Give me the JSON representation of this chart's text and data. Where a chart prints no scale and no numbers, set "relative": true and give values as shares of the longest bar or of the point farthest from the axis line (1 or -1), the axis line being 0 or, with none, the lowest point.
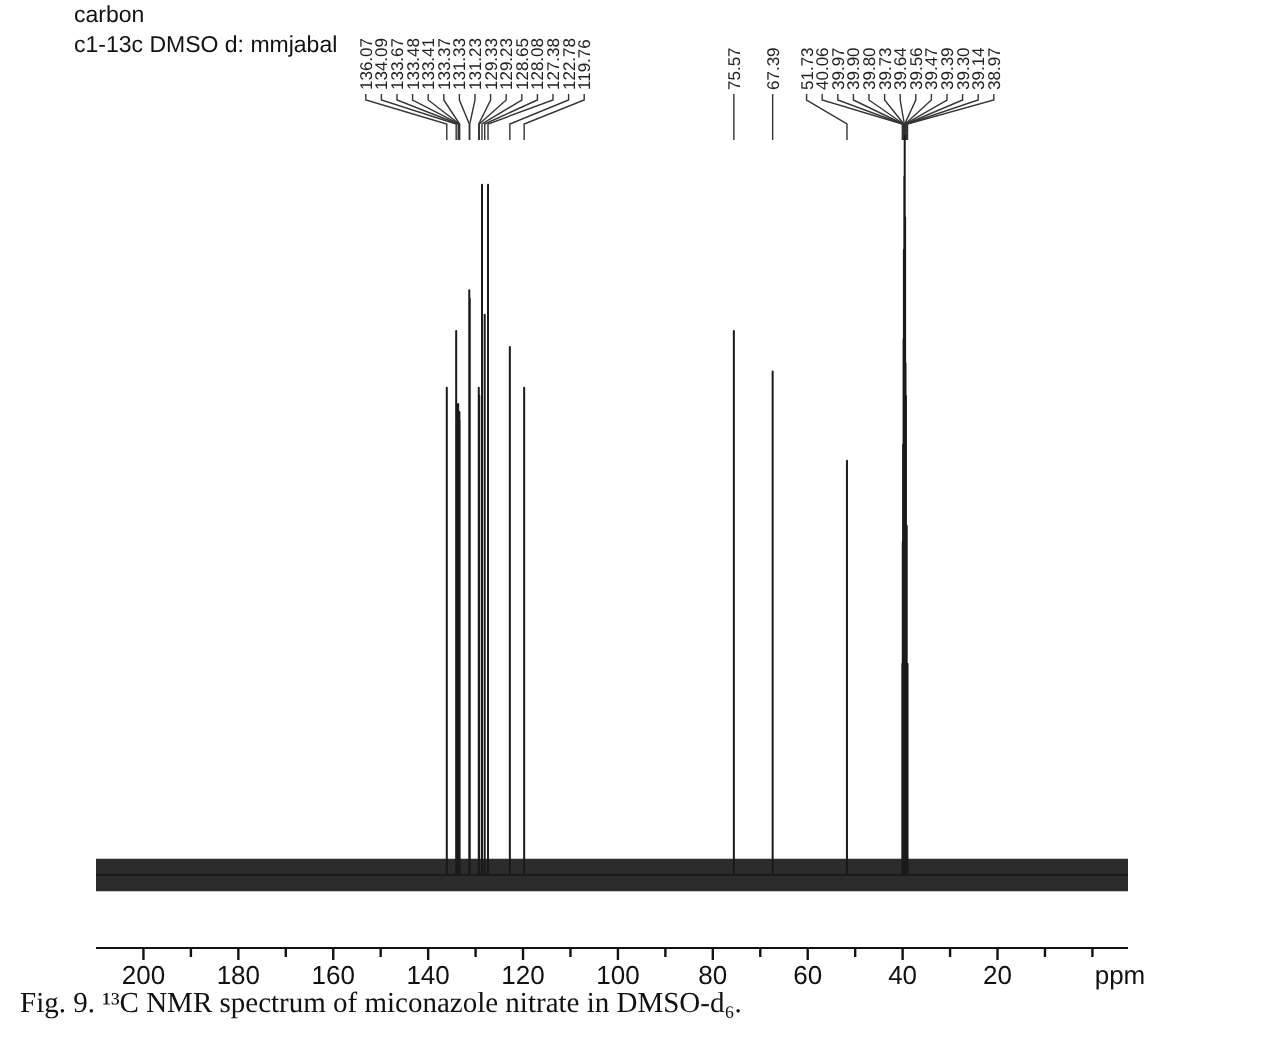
{
  "chart_data": {
    "type": "line",
    "relative": true,
    "title": "carbon",
    "subtitle": "c1-13c DMSO d: mmjabal",
    "xlabel": "ppm",
    "xlim": [
      210,
      -7.5
    ],
    "xticks": [
      200,
      {
        "value": 190,
        "label": null
      },
      180,
      {
        "value": 170,
        "label": null
      },
      160,
      {
        "value": 150,
        "label": null
      },
      140,
      {
        "value": 130,
        "label": null
      },
      120,
      {
        "value": 110,
        "label": null
      },
      100,
      {
        "value": 90,
        "label": null
      },
      80,
      {
        "value": 70,
        "label": null
      },
      60,
      {
        "value": 50,
        "label": null
      },
      40,
      {
        "value": 30,
        "label": null
      },
      20,
      {
        "value": 10,
        "label": null
      },
      {
        "value": 0,
        "label": null
      }
    ],
    "series": [
      {
        "color": "#1a1a1a",
        "x": [
          210,
          136.07,
          136.07,
          136.07,
          134.09,
          134.09,
          134.09,
          133.67,
          133.67,
          133.67,
          133.48,
          133.48,
          133.48,
          133.41,
          133.41,
          133.41,
          133.37,
          133.37,
          133.37,
          131.33,
          131.33,
          131.33,
          131.23,
          131.23,
          131.23,
          129.33,
          129.33,
          129.33,
          129.23,
          129.23,
          129.23,
          128.65,
          128.65,
          128.65,
          128.08,
          128.08,
          128.08,
          127.38,
          127.38,
          127.38,
          122.78,
          122.78,
          122.78,
          119.76,
          119.76,
          119.76,
          75.57,
          75.57,
          75.57,
          67.39,
          67.39,
          67.39,
          51.73,
          51.73,
          51.73,
          40.06,
          40.06,
          40.06,
          39.97,
          39.97,
          39.97,
          39.9,
          39.9,
          39.9,
          39.8,
          39.8,
          39.8,
          39.73,
          39.73,
          39.73,
          39.64,
          39.64,
          39.64,
          39.56,
          39.56,
          39.56,
          39.47,
          39.47,
          39.47,
          39.39,
          39.39,
          39.39,
          39.3,
          39.3,
          39.3,
          39.14,
          39.14,
          39.14,
          38.97,
          38.97,
          38.97,
          -7.5
        ],
        "values": [
          0.09,
          0.09,
          0.69,
          0.09,
          0.09,
          0.76,
          0.09,
          0.09,
          0.67,
          0.09,
          0.09,
          0.66,
          0.09,
          0.09,
          0.66,
          0.09,
          0.09,
          0.65,
          0.09,
          0.09,
          0.81,
          0.09,
          0.09,
          0.8,
          0.09,
          0.09,
          0.69,
          0.09,
          0.09,
          0.68,
          0.09,
          0.09,
          0.94,
          0.09,
          0.09,
          0.78,
          0.09,
          0.09,
          0.94,
          0.09,
          0.09,
          0.74,
          0.09,
          0.09,
          0.69,
          0.09,
          0.09,
          0.76,
          0.09,
          0.09,
          0.71,
          0.09,
          0.09,
          0.6,
          0.09,
          0.09,
          0.35,
          0.09,
          0.09,
          0.5,
          0.09,
          0.09,
          0.62,
          0.09,
          0.09,
          0.75,
          0.09,
          0.09,
          0.86,
          0.09,
          0.09,
          0.95,
          0.09,
          0.09,
          1,
          0.09,
          0.09,
          0.9,
          0.09,
          0.09,
          0.72,
          0.09,
          0.09,
          0.68,
          0.09,
          0.09,
          0.52,
          0.09,
          0.09,
          0.35,
          0.09,
          0.09
        ],
        "lower": [
          0.07,
          0.07,
          0.07,
          0.07,
          0.07,
          0.07,
          0.07,
          0.07,
          0.07,
          0.07,
          0.07,
          0.07,
          0.07,
          0.07,
          0.07,
          0.07,
          0.07,
          0.07,
          0.07,
          0.07,
          0.07,
          0.07,
          0.07,
          0.07,
          0.07,
          0.07,
          0.07,
          0.07,
          0.07,
          0.07,
          0.07,
          0.07,
          0.07,
          0.07,
          0.07,
          0.07,
          0.07,
          0.07,
          0.07,
          0.07,
          0.07,
          0.07,
          0.07,
          0.07,
          0.07,
          0.07,
          0.07,
          0.07,
          0.07,
          0.07,
          0.07,
          0.07,
          0.07,
          0.07,
          0.07,
          0.07,
          0.07,
          0.07,
          0.07,
          0.07,
          0.07,
          0.07,
          0.07,
          0.07,
          0.07,
          0.07,
          0.07,
          0.07,
          0.07,
          0.07,
          0.07,
          0.07,
          0.07,
          0.07,
          0.07,
          0.07,
          0.07,
          0.07,
          0.07,
          0.07,
          0.07,
          0.07,
          0.07,
          0.07,
          0.07,
          0.07,
          0.07,
          0.07,
          0.07,
          0.07,
          0.07,
          0.07
        ],
        "upper": [
          0.11,
          0.11,
          0.11,
          0.11,
          0.11,
          0.11,
          0.11,
          0.11,
          0.11,
          0.11,
          0.11,
          0.11,
          0.11,
          0.11,
          0.11,
          0.11,
          0.11,
          0.11,
          0.11,
          0.11,
          0.11,
          0.11,
          0.11,
          0.11,
          0.11,
          0.11,
          0.11,
          0.11,
          0.11,
          0.11,
          0.11,
          0.11,
          0.11,
          0.11,
          0.11,
          0.11,
          0.11,
          0.11,
          0.11,
          0.11,
          0.11,
          0.11,
          0.11,
          0.11,
          0.11,
          0.11,
          0.11,
          0.11,
          0.11,
          0.11,
          0.11,
          0.11,
          0.11,
          0.11,
          0.11,
          0.11,
          0.11,
          0.11,
          0.11,
          0.11,
          0.11,
          0.11,
          0.11,
          0.11,
          0.11,
          0.11,
          0.11,
          0.11,
          0.11,
          0.11,
          0.11,
          0.11,
          0.11,
          0.11,
          0.11,
          0.11,
          0.11,
          0.11,
          0.11,
          0.11,
          0.11,
          0.11,
          0.11,
          0.11,
          0.11,
          0.11,
          0.11,
          0.11,
          0.11,
          0.11,
          0.11,
          0.11
        ]
      }
    ],
    "annotations": [
      {
        "text": "136.07",
        "x": 136.07
      },
      {
        "text": "134.09",
        "x": 134.09
      },
      {
        "text": "133.67",
        "x": 133.67
      },
      {
        "text": "133.48",
        "x": 133.48
      },
      {
        "text": "133.41",
        "x": 133.41
      },
      {
        "text": "133.37",
        "x": 133.37
      },
      {
        "text": "131.33",
        "x": 131.33
      },
      {
        "text": "131.23",
        "x": 131.23
      },
      {
        "text": "129.33",
        "x": 129.33
      },
      {
        "text": "129.23",
        "x": 129.23
      },
      {
        "text": "128.65",
        "x": 128.65
      },
      {
        "text": "128.08",
        "x": 128.08
      },
      {
        "text": "127.38",
        "x": 127.38
      },
      {
        "text": "122.78",
        "x": 122.78
      },
      {
        "text": "119.76",
        "x": 119.76
      },
      {
        "text": "75.57",
        "x": 75.57
      },
      {
        "text": "67.39",
        "x": 67.39
      },
      {
        "text": "51.73",
        "x": 51.73
      },
      {
        "text": "40.06",
        "x": 40.06
      },
      {
        "text": "39.97",
        "x": 39.97
      },
      {
        "text": "39.90",
        "x": 39.9
      },
      {
        "text": "39.80",
        "x": 39.8
      },
      {
        "text": "39.73",
        "x": 39.73
      },
      {
        "text": "39.64",
        "x": 39.64
      },
      {
        "text": "39.56",
        "x": 39.56
      },
      {
        "text": "39.47",
        "x": 39.47
      },
      {
        "text": "39.39",
        "x": 39.39
      },
      {
        "text": "39.30",
        "x": 39.3
      },
      {
        "text": "39.14",
        "x": 39.14
      },
      {
        "text": "38.97",
        "x": 38.97
      },
      "Fig. 9. ¹³C NMR spectrum of miconazole nitrate in DMSO-d₆."
    ]
  }
}
